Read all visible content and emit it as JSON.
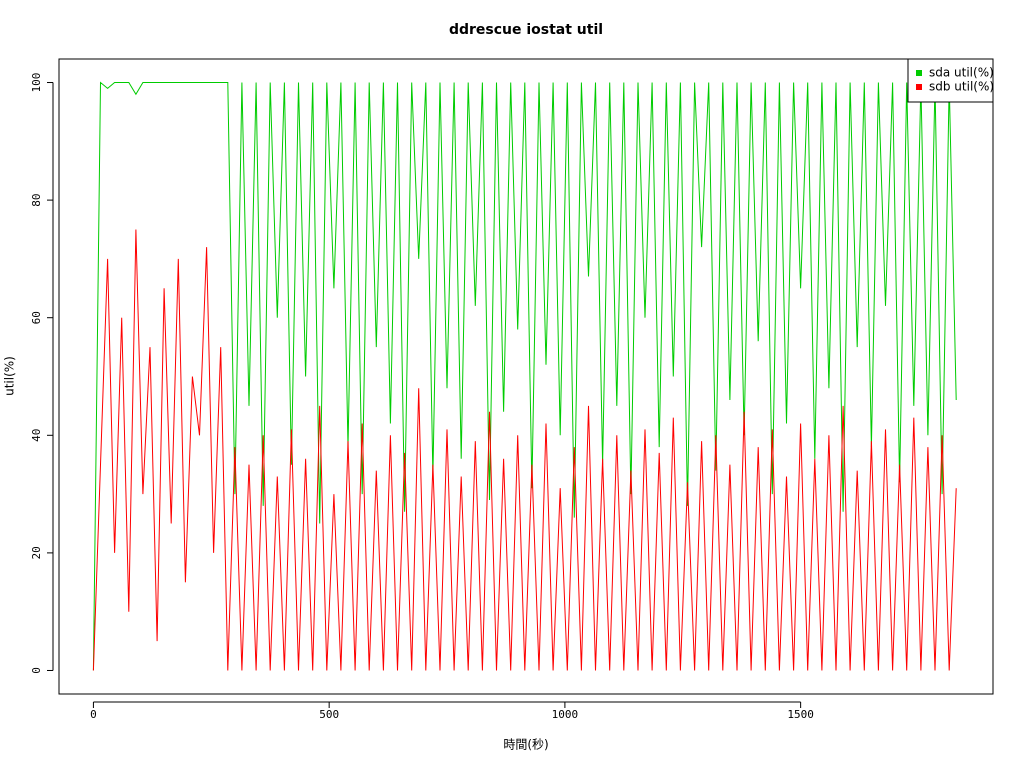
{
  "chart_data": {
    "type": "line",
    "title": "ddrescue iostat util",
    "xlabel": "時間(秒)",
    "ylabel": "util(%)",
    "x": [
      0,
      15,
      30,
      45,
      60,
      75,
      90,
      105,
      120,
      135,
      150,
      165,
      180,
      195,
      210,
      225,
      240,
      255,
      270,
      285,
      300,
      315,
      330,
      345,
      360,
      375,
      390,
      405,
      420,
      435,
      450,
      465,
      480,
      495,
      510,
      525,
      540,
      555,
      570,
      585,
      600,
      615,
      630,
      645,
      660,
      675,
      690,
      705,
      720,
      735,
      750,
      765,
      780,
      795,
      810,
      825,
      840,
      855,
      870,
      885,
      900,
      915,
      930,
      945,
      960,
      975,
      990,
      1005,
      1020,
      1035,
      1050,
      1065,
      1080,
      1095,
      1110,
      1125,
      1140,
      1155,
      1170,
      1185,
      1200,
      1215,
      1230,
      1245,
      1260,
      1275,
      1290,
      1305,
      1320,
      1335,
      1350,
      1365,
      1380,
      1395,
      1410,
      1425,
      1440,
      1455,
      1470,
      1485,
      1500,
      1515,
      1530,
      1545,
      1560,
      1575,
      1590,
      1605,
      1620,
      1635,
      1650,
      1665,
      1680,
      1695,
      1710,
      1725,
      1740,
      1755,
      1770,
      1785,
      1800,
      1815,
      1830
    ],
    "series": [
      {
        "name": "sda util(%)",
        "color": "#00cc00",
        "values": [
          0,
          100,
          99,
          100,
          100,
          100,
          98,
          100,
          100,
          100,
          100,
          100,
          100,
          100,
          100,
          100,
          100,
          100,
          100,
          100,
          30,
          100,
          45,
          100,
          28,
          100,
          60,
          100,
          35,
          100,
          50,
          100,
          25,
          100,
          65,
          100,
          38,
          100,
          30,
          100,
          55,
          100,
          42,
          100,
          27,
          100,
          70,
          100,
          33,
          100,
          48,
          100,
          36,
          100,
          62,
          100,
          29,
          100,
          44,
          100,
          58,
          100,
          31,
          100,
          52,
          100,
          40,
          100,
          26,
          100,
          67,
          100,
          35,
          100,
          45,
          100,
          30,
          100,
          60,
          100,
          38,
          100,
          50,
          100,
          28,
          100,
          72,
          100,
          34,
          100,
          46,
          100,
          40,
          100,
          56,
          100,
          30,
          100,
          42,
          100,
          65,
          100,
          36,
          100,
          48,
          100,
          27,
          100,
          55,
          100,
          38,
          100,
          62,
          100,
          32,
          100,
          45,
          100,
          40,
          100,
          30,
          100,
          46
        ]
      },
      {
        "name": "sdb util(%)",
        "color": "#ff0000",
        "values": [
          0,
          35,
          70,
          20,
          60,
          10,
          75,
          30,
          55,
          5,
          65,
          25,
          70,
          15,
          50,
          40,
          72,
          20,
          55,
          0,
          38,
          0,
          35,
          0,
          40,
          0,
          33,
          0,
          41,
          0,
          36,
          0,
          45,
          0,
          30,
          0,
          39,
          0,
          42,
          0,
          34,
          0,
          40,
          0,
          37,
          0,
          48,
          0,
          35,
          0,
          41,
          0,
          33,
          0,
          39,
          0,
          44,
          0,
          36,
          0,
          40,
          0,
          35,
          0,
          42,
          0,
          31,
          0,
          38,
          0,
          45,
          0,
          36,
          0,
          40,
          0,
          34,
          0,
          41,
          0,
          37,
          0,
          43,
          0,
          32,
          0,
          39,
          0,
          40,
          0,
          35,
          0,
          44,
          0,
          38,
          0,
          41,
          0,
          33,
          0,
          42,
          0,
          36,
          0,
          40,
          0,
          45,
          0,
          34,
          0,
          39,
          0,
          41,
          0,
          35,
          0,
          43,
          0,
          38,
          0,
          40,
          0,
          31
        ]
      }
    ],
    "xlim": [
      -73,
      1908
    ],
    "ylim": [
      -4,
      104
    ],
    "xticks": [
      0,
      500,
      1000,
      1500
    ],
    "yticks": [
      0,
      20,
      40,
      60,
      80,
      100
    ],
    "legend": "top-right"
  }
}
